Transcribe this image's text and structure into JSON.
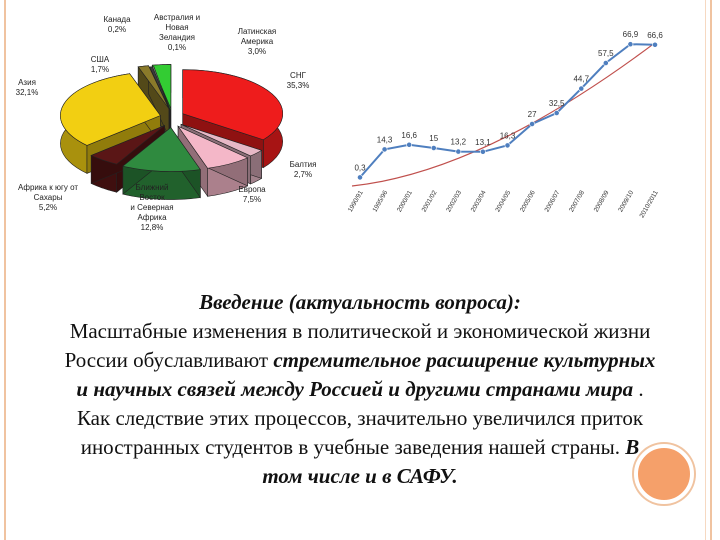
{
  "chart_data": [
    {
      "type": "pie",
      "slices": [
        {
          "label": [
            "СНГ",
            "35,3%"
          ],
          "value": 35.3,
          "color": "#ee1c1c"
        },
        {
          "label": [
            "Балтия",
            "2,7%"
          ],
          "value": 2.7,
          "color": "#e6b8c6"
        },
        {
          "label": [
            "Европа",
            "7,5%"
          ],
          "value": 7.5,
          "color": "#f4b7c8"
        },
        {
          "label": [
            "Ближний",
            "Восток",
            "и Северная",
            "Африка",
            "12,8%"
          ],
          "value": 12.8,
          "color": "#2f8a3f"
        },
        {
          "label": [
            "Африка к югу от",
            "Сахары",
            "5,2%"
          ],
          "value": 5.2,
          "color": "#5a1616"
        },
        {
          "label": [
            "Азия",
            "32,1%"
          ],
          "value": 32.1,
          "color": "#f2cf12"
        },
        {
          "label": [
            "США",
            "1,7%"
          ],
          "value": 1.7,
          "color": "#8a7a2a"
        },
        {
          "label": [
            "Канада",
            "0,2%"
          ],
          "value": 0.2,
          "color": "#3a3a3a"
        },
        {
          "label": [
            "Австралия и",
            "Новая",
            "Зеландия",
            "0,1%"
          ],
          "value": 0.1,
          "color": "#9a9a9a"
        },
        {
          "label": [
            "Латинская",
            "Америка",
            "3,0%"
          ],
          "value": 3.0,
          "color": "#33cc33"
        }
      ]
    },
    {
      "type": "line",
      "x": [
        "1990/91",
        "1995/96",
        "2000/01",
        "2001/02",
        "2002/03",
        "2003/04",
        "2004/05",
        "2005/06",
        "2006/07",
        "2007/08",
        "2008/09",
        "2009/10",
        "2010/2011"
      ],
      "values": [
        0.3,
        14.3,
        16.6,
        15,
        13.2,
        13.1,
        16.3,
        27,
        32.5,
        44.7,
        57.5,
        66.9,
        66.6
      ],
      "value_labels": [
        "0,3",
        "14,3",
        "16,6",
        "15",
        "13,2",
        "13,1",
        "16,3",
        "27",
        "32,5",
        "44,7",
        "57,5",
        "66,9",
        "66,6"
      ],
      "ylim": [
        0,
        70
      ],
      "series_color": "#4f7fbf",
      "trend_color": "#c0504d"
    }
  ],
  "text": {
    "heading": "Введение (актуальность вопроса):",
    "p1": "Масштабные изменения в политической и экономической жизни России обуславливают ",
    "p1_emph": "стремительное расширение культурных и научных связей между Россией и другими странами мира",
    "p1_end": " .",
    "p2": " Как следствие этих процессов, значительно увеличился приток иностранных студентов в учебные заведения нашей страны. ",
    "p2_emph": "В том числе и в САФУ."
  }
}
